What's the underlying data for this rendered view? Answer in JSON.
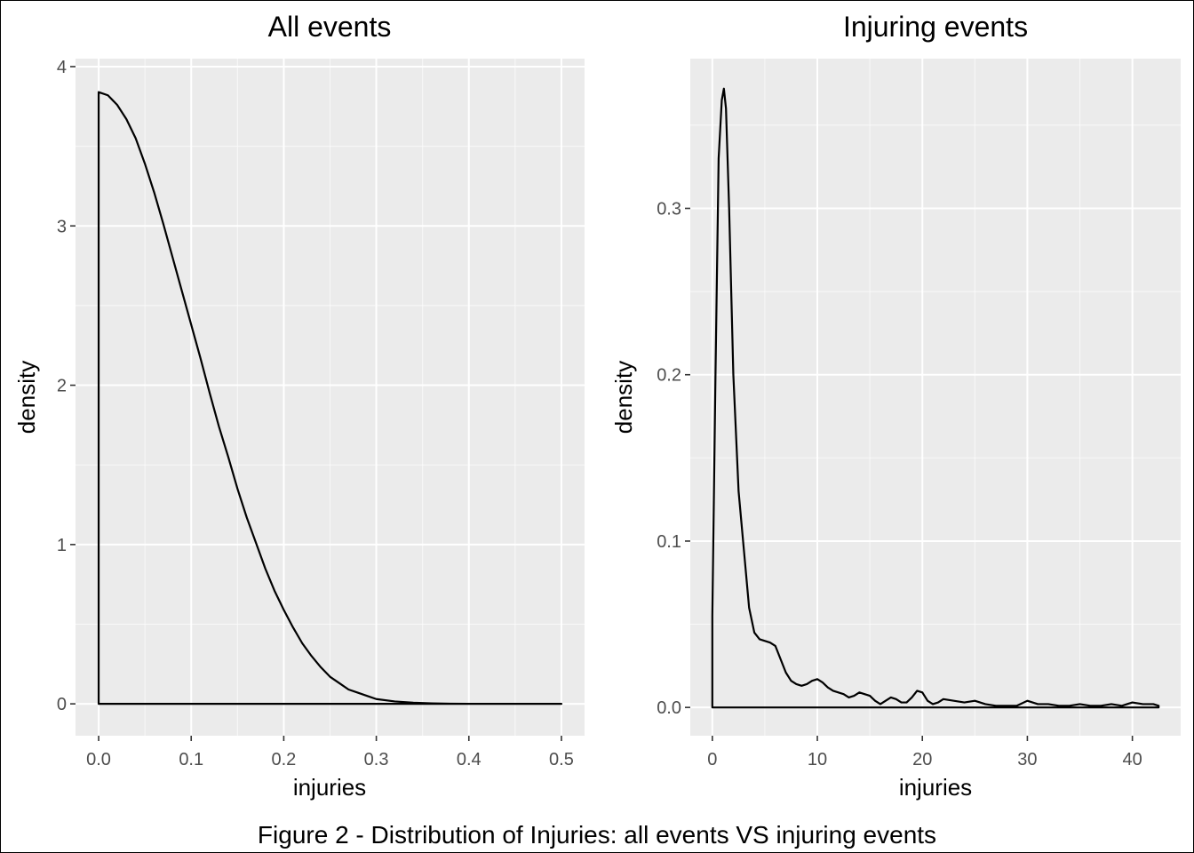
{
  "caption": "Figure 2 - Distribution of Injuries: all events VS injuring events",
  "chart_data": [
    {
      "type": "area",
      "title": "All events",
      "xlabel": "injuries",
      "ylabel": "density",
      "xlim": [
        -0.025,
        0.525
      ],
      "ylim": [
        -0.2,
        4.05
      ],
      "x_ticks": [
        0,
        0.1,
        0.2,
        0.3,
        0.4,
        0.5
      ],
      "x_tick_labels": [
        "0.0",
        "0.1",
        "0.2",
        "0.3",
        "0.4",
        "0.5"
      ],
      "y_ticks": [
        0,
        1,
        2,
        3,
        4
      ],
      "y_tick_labels": [
        "0",
        "1",
        "2",
        "3",
        "4"
      ],
      "grid": true,
      "series": [
        {
          "x": [
            0,
            0.01,
            0.02,
            0.03,
            0.04,
            0.05,
            0.06,
            0.07,
            0.08,
            0.09,
            0.1,
            0.11,
            0.12,
            0.13,
            0.14,
            0.15,
            0.16,
            0.17,
            0.18,
            0.19,
            0.2,
            0.21,
            0.22,
            0.23,
            0.24,
            0.25,
            0.26,
            0.27,
            0.28,
            0.29,
            0.3,
            0.32,
            0.34,
            0.36,
            0.38,
            0.4,
            0.45,
            0.5
          ],
          "y": [
            3.84,
            3.82,
            3.76,
            3.67,
            3.55,
            3.39,
            3.21,
            3.01,
            2.8,
            2.59,
            2.38,
            2.17,
            1.95,
            1.74,
            1.55,
            1.35,
            1.17,
            1.01,
            0.85,
            0.71,
            0.59,
            0.48,
            0.38,
            0.3,
            0.23,
            0.17,
            0.13,
            0.09,
            0.07,
            0.05,
            0.03,
            0.015,
            0.007,
            0.003,
            0.001,
            0.0005,
            0.0001,
            0
          ]
        }
      ]
    },
    {
      "type": "area",
      "title": "Injuring events",
      "xlabel": "injuries",
      "ylabel": "density",
      "xlim": [
        -2.1,
        44.6
      ],
      "ylim": [
        -0.017,
        0.39
      ],
      "x_ticks": [
        0,
        10,
        20,
        30,
        40
      ],
      "x_tick_labels": [
        "0",
        "10",
        "20",
        "30",
        "40"
      ],
      "y_ticks": [
        0,
        0.1,
        0.2,
        0.3
      ],
      "y_tick_labels": [
        "0.0",
        "0.1",
        "0.2",
        "0.3"
      ],
      "grid": true,
      "series": [
        {
          "x": [
            0,
            0.3,
            0.6,
            0.9,
            1.1,
            1.3,
            1.6,
            2,
            2.5,
            3,
            3.5,
            4,
            4.5,
            5,
            5.5,
            6,
            6.5,
            7,
            7.5,
            8,
            8.5,
            9,
            9.5,
            10,
            10.5,
            11,
            11.5,
            12,
            12.5,
            13,
            13.5,
            14,
            14.5,
            15,
            15.5,
            16,
            16.5,
            17,
            17.5,
            18,
            18.5,
            19,
            19.5,
            20,
            20.5,
            21,
            21.5,
            22,
            23,
            24,
            25,
            26,
            27,
            28,
            29,
            30,
            31,
            32,
            33,
            34,
            35,
            36,
            37,
            38,
            39,
            40,
            41,
            42,
            42.5
          ],
          "y": [
            0.055,
            0.2,
            0.33,
            0.365,
            0.372,
            0.36,
            0.3,
            0.2,
            0.13,
            0.095,
            0.06,
            0.045,
            0.041,
            0.04,
            0.039,
            0.037,
            0.029,
            0.021,
            0.016,
            0.014,
            0.013,
            0.014,
            0.016,
            0.017,
            0.015,
            0.012,
            0.01,
            0.009,
            0.008,
            0.006,
            0.007,
            0.009,
            0.008,
            0.007,
            0.004,
            0.002,
            0.004,
            0.006,
            0.005,
            0.003,
            0.003,
            0.006,
            0.01,
            0.009,
            0.004,
            0.002,
            0.003,
            0.005,
            0.004,
            0.003,
            0.004,
            0.002,
            0.001,
            0.001,
            0.001,
            0.004,
            0.002,
            0.002,
            0.001,
            0.001,
            0.002,
            0.001,
            0.001,
            0.002,
            0.001,
            0.003,
            0.002,
            0.002,
            0.001
          ]
        }
      ]
    }
  ]
}
